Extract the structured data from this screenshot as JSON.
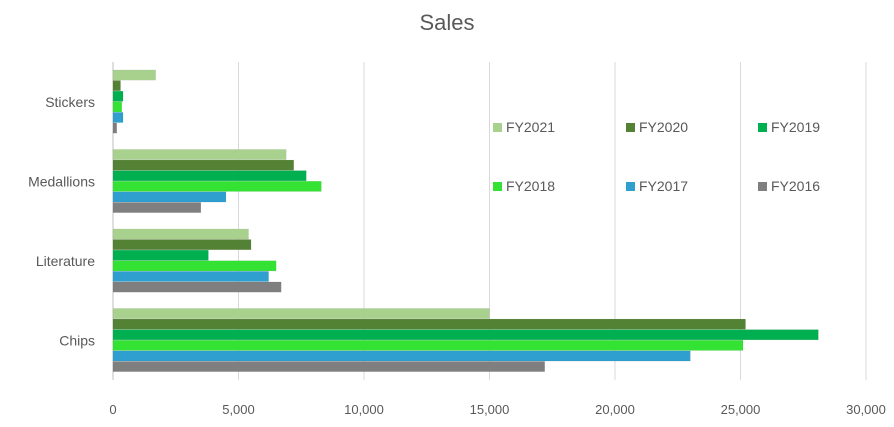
{
  "chart_data": {
    "type": "bar",
    "orientation": "horizontal",
    "title": "Sales",
    "xlabel": "",
    "ylabel": "",
    "categories": [
      "Stickers",
      "Medallions",
      "Literature",
      "Chips"
    ],
    "series": [
      {
        "name": "FY2021",
        "color": "#a9d18e",
        "values": [
          1700,
          6900,
          5400,
          15000
        ]
      },
      {
        "name": "FY2020",
        "color": "#548235",
        "values": [
          300,
          7200,
          5500,
          25200
        ]
      },
      {
        "name": "FY2019",
        "color": "#00b050",
        "values": [
          400,
          7700,
          3800,
          28100
        ]
      },
      {
        "name": "FY2018",
        "color": "#33e233",
        "values": [
          350,
          8300,
          6500,
          25100
        ]
      },
      {
        "name": "FY2017",
        "color": "#2e9fcf",
        "values": [
          400,
          4500,
          6200,
          23000
        ]
      },
      {
        "name": "FY2016",
        "color": "#7f7f7f",
        "values": [
          150,
          3500,
          6700,
          17200
        ]
      }
    ],
    "xlim": [
      0,
      30000
    ],
    "x_ticks": [
      "0",
      "5,000",
      "10,000",
      "15,000",
      "20,000",
      "25,000",
      "30,000"
    ],
    "x_tick_values": [
      0,
      5000,
      10000,
      15000,
      20000,
      25000,
      30000
    ],
    "grid": true,
    "legend_position": "inside-right"
  }
}
